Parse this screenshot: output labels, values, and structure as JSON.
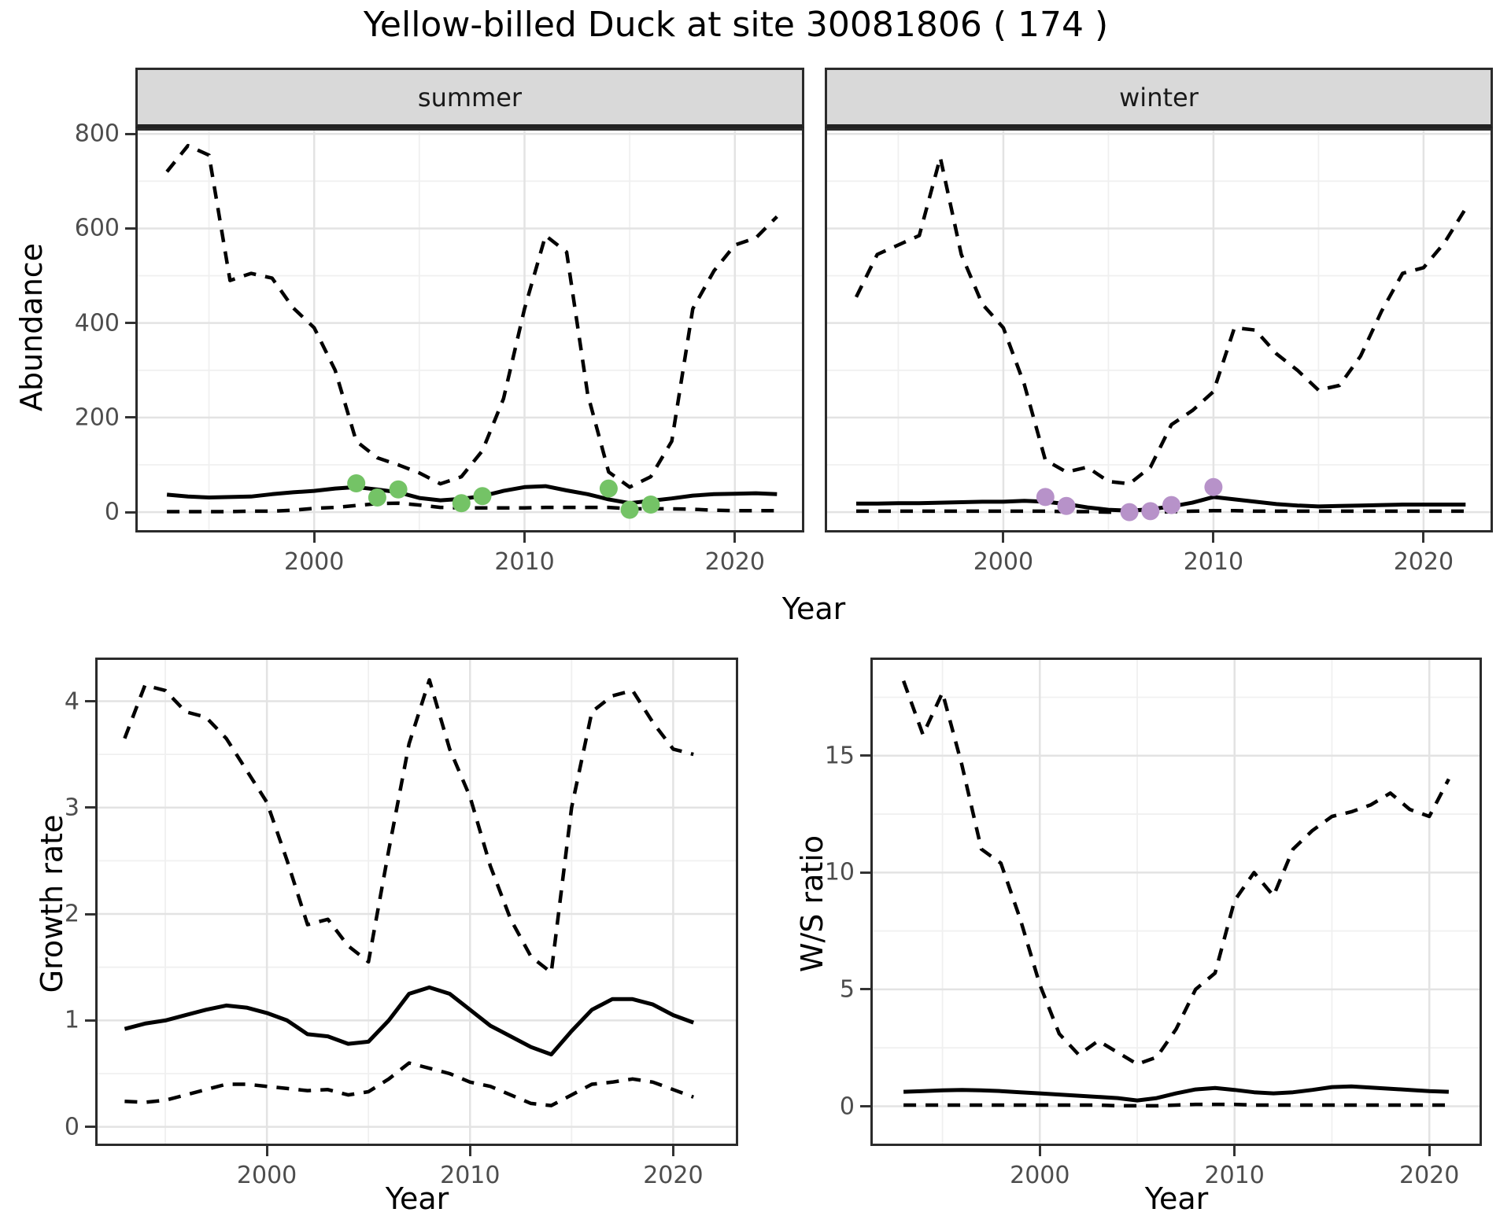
{
  "title": "Yellow-billed Duck at site 30081806 ( 174 )",
  "labels": {
    "year_axis": "Year",
    "abundance_axis": "Abundance",
    "growth_axis": "Growth rate",
    "ws_axis": "W/S ratio",
    "facet_summer": "summer",
    "facet_winter": "winter"
  },
  "colors": {
    "summer_points": "#74C366",
    "winter_points": "#B792C9",
    "line": "#000000",
    "grid_major": "#E3E3E3",
    "grid_minor": "#F0F0F0",
    "panel_border": "#2B2B2B",
    "strip_bg": "#D9D9D9",
    "tick_text": "#4D4D4D"
  },
  "chart_data": [
    {
      "id": "abundance_summer",
      "type": "line",
      "facet": "summer",
      "xlabel": "Year",
      "ylabel": "Abundance",
      "xlim": [
        1991.5,
        2023.3
      ],
      "ylim": [
        -43,
        812
      ],
      "xticks": {
        "values": [
          2000,
          2010,
          2020
        ],
        "labels": [
          "2000",
          "2010",
          "2020"
        ],
        "minor": [
          1995,
          2005,
          2015
        ]
      },
      "yticks": {
        "values": [
          0,
          200,
          400,
          600,
          800
        ],
        "labels": [
          "0",
          "200",
          "400",
          "600",
          "800"
        ],
        "minor": [
          100,
          300,
          500,
          700
        ]
      },
      "years": [
        1993,
        1994,
        1995,
        1996,
        1997,
        1998,
        1999,
        2000,
        2001,
        2002,
        2003,
        2004,
        2005,
        2006,
        2007,
        2008,
        2009,
        2010,
        2011,
        2012,
        2013,
        2014,
        2015,
        2016,
        2017,
        2018,
        2019,
        2020,
        2021,
        2022
      ],
      "series": [
        {
          "name": "upper_95ci",
          "style": "dashed",
          "values": [
            720,
            775,
            755,
            490,
            505,
            495,
            432,
            390,
            300,
            150,
            115,
            100,
            83,
            60,
            75,
            130,
            240,
            430,
            585,
            550,
            250,
            85,
            53,
            75,
            150,
            430,
            510,
            565,
            580,
            625
          ]
        },
        {
          "name": "mean",
          "style": "solid",
          "values": [
            37,
            33,
            31,
            32,
            33,
            38,
            42,
            45,
            50,
            53,
            48,
            42,
            30,
            25,
            28,
            34,
            45,
            53,
            55,
            46,
            38,
            27,
            19,
            24,
            29,
            35,
            38,
            39,
            40,
            38
          ]
        },
        {
          "name": "lower_95ci",
          "style": "dashed",
          "values": [
            1,
            1,
            1,
            1,
            2,
            2,
            4,
            8,
            10,
            14,
            18,
            19,
            15,
            10,
            9,
            9,
            9,
            9,
            10,
            10,
            10,
            10,
            7,
            7,
            7,
            6,
            4,
            3,
            3,
            3
          ]
        }
      ],
      "observations": {
        "color_key": "summer_points",
        "data": [
          [
            2002,
            61
          ],
          [
            2003,
            31
          ],
          [
            2004,
            48
          ],
          [
            2007,
            19
          ],
          [
            2008,
            34
          ],
          [
            2014,
            50
          ],
          [
            2015,
            5
          ],
          [
            2016,
            16
          ]
        ]
      }
    },
    {
      "id": "abundance_winter",
      "type": "line",
      "facet": "winter",
      "xlabel": "Year",
      "ylabel": "Abundance",
      "xlim": [
        1991.5,
        2023.3
      ],
      "ylim": [
        -43,
        812
      ],
      "xticks": {
        "values": [
          2000,
          2010,
          2020
        ],
        "labels": [
          "2000",
          "2010",
          "2020"
        ],
        "minor": [
          1995,
          2005,
          2015
        ]
      },
      "yticks": {
        "values": [
          0,
          200,
          400,
          600,
          800
        ],
        "labels": [
          "0",
          "200",
          "400",
          "600",
          "800"
        ],
        "minor": [
          100,
          300,
          500,
          700
        ]
      },
      "years": [
        1993,
        1994,
        1995,
        1996,
        1997,
        1998,
        1999,
        2000,
        2001,
        2002,
        2003,
        2004,
        2005,
        2006,
        2007,
        2008,
        2009,
        2010,
        2011,
        2012,
        2013,
        2014,
        2015,
        2016,
        2017,
        2018,
        2019,
        2020,
        2021,
        2022
      ],
      "series": [
        {
          "name": "upper_95ci",
          "style": "dashed",
          "values": [
            455,
            545,
            565,
            585,
            750,
            545,
            440,
            390,
            270,
            110,
            85,
            95,
            65,
            60,
            95,
            185,
            215,
            255,
            390,
            385,
            335,
            300,
            258,
            268,
            330,
            425,
            505,
            517,
            570,
            642
          ]
        },
        {
          "name": "mean",
          "style": "solid",
          "values": [
            18,
            18,
            19,
            19,
            20,
            21,
            22,
            22,
            24,
            22,
            17,
            10,
            5,
            3,
            6,
            12,
            20,
            32,
            27,
            22,
            17,
            14,
            12,
            13,
            14,
            15,
            16,
            16,
            16,
            16
          ]
        },
        {
          "name": "lower_95ci",
          "style": "dashed",
          "values": [
            2,
            2,
            2,
            2,
            2,
            2,
            2,
            2,
            2,
            2,
            1,
            1,
            0,
            0,
            0,
            1,
            2,
            3,
            3,
            2,
            2,
            2,
            2,
            2,
            2,
            2,
            2,
            2,
            2,
            2
          ]
        }
      ],
      "observations": {
        "color_key": "winter_points",
        "data": [
          [
            2002,
            32
          ],
          [
            2003,
            13
          ],
          [
            2006,
            0
          ],
          [
            2007,
            2
          ],
          [
            2008,
            15
          ],
          [
            2010,
            53
          ]
        ]
      }
    },
    {
      "id": "growth_rate",
      "type": "line",
      "facet": null,
      "xlabel": "Year",
      "ylabel": "Growth rate",
      "xlim": [
        1991.55,
        2023.2
      ],
      "ylim": [
        -0.18,
        4.41
      ],
      "xticks": {
        "values": [
          2000,
          2010,
          2020
        ],
        "labels": [
          "2000",
          "2010",
          "2020"
        ],
        "minor": [
          1995,
          2005,
          2015
        ]
      },
      "yticks": {
        "values": [
          0,
          1,
          2,
          3,
          4
        ],
        "labels": [
          "0",
          "1",
          "2",
          "3",
          "4"
        ],
        "minor": [
          0.5,
          1.5,
          2.5,
          3.5
        ]
      },
      "years": [
        1993,
        1994,
        1995,
        1996,
        1997,
        1998,
        1999,
        2000,
        2001,
        2002,
        2003,
        2004,
        2005,
        2006,
        2007,
        2008,
        2009,
        2010,
        2011,
        2012,
        2013,
        2014,
        2015,
        2016,
        2017,
        2018,
        2019,
        2020,
        2021
      ],
      "series": [
        {
          "name": "upper_95ci",
          "style": "dashed",
          "values": [
            3.65,
            4.15,
            4.1,
            3.9,
            3.85,
            3.65,
            3.35,
            3.05,
            2.5,
            1.9,
            1.95,
            1.7,
            1.55,
            2.6,
            3.6,
            4.2,
            3.55,
            3.1,
            2.45,
            1.95,
            1.6,
            1.45,
            3.0,
            3.9,
            4.05,
            4.1,
            3.8,
            3.55,
            3.5
          ]
        },
        {
          "name": "mean",
          "style": "solid",
          "values": [
            0.92,
            0.97,
            1.0,
            1.05,
            1.1,
            1.14,
            1.12,
            1.07,
            1.0,
            0.87,
            0.85,
            0.78,
            0.8,
            1.0,
            1.25,
            1.31,
            1.25,
            1.1,
            0.95,
            0.85,
            0.75,
            0.68,
            0.9,
            1.1,
            1.2,
            1.2,
            1.15,
            1.05,
            0.98
          ]
        },
        {
          "name": "lower_95ci",
          "style": "dashed",
          "values": [
            0.24,
            0.23,
            0.25,
            0.3,
            0.35,
            0.4,
            0.4,
            0.38,
            0.36,
            0.34,
            0.35,
            0.3,
            0.33,
            0.45,
            0.6,
            0.55,
            0.5,
            0.42,
            0.38,
            0.3,
            0.22,
            0.2,
            0.3,
            0.4,
            0.42,
            0.45,
            0.42,
            0.35,
            0.28
          ]
        }
      ],
      "observations": null
    },
    {
      "id": "ws_ratio",
      "type": "line",
      "facet": null,
      "xlabel": "Year",
      "ylabel": "W/S ratio",
      "xlim": [
        1991.3,
        2022.7
      ],
      "ylim": [
        -1.7,
        19.2
      ],
      "xticks": {
        "values": [
          2000,
          2010,
          2020
        ],
        "labels": [
          "2000",
          "2010",
          "2020"
        ],
        "minor": [
          1995,
          2005,
          2015
        ]
      },
      "yticks": {
        "values": [
          0,
          5,
          10,
          15
        ],
        "labels": [
          "0",
          "5",
          "10",
          "15"
        ],
        "minor": [
          2.5,
          7.5,
          12.5,
          17.5
        ]
      },
      "years": [
        1993,
        1994,
        1995,
        1996,
        1997,
        1998,
        1999,
        2000,
        2001,
        2002,
        2003,
        2004,
        2005,
        2006,
        2007,
        2008,
        2009,
        2010,
        2011,
        2012,
        2013,
        2014,
        2015,
        2016,
        2017,
        2018,
        2019,
        2020,
        2021
      ],
      "series": [
        {
          "name": "upper_95ci",
          "style": "dashed",
          "values": [
            18.2,
            15.9,
            17.7,
            14.6,
            11.0,
            10.4,
            8.0,
            5.2,
            3.1,
            2.2,
            2.8,
            2.3,
            1.8,
            2.1,
            3.3,
            5.0,
            5.7,
            8.8,
            10.0,
            9.0,
            11.0,
            11.8,
            12.4,
            12.6,
            12.9,
            13.4,
            12.7,
            12.4,
            14.0
          ]
        },
        {
          "name": "mean",
          "style": "solid",
          "values": [
            0.62,
            0.65,
            0.68,
            0.7,
            0.68,
            0.65,
            0.6,
            0.55,
            0.5,
            0.45,
            0.4,
            0.35,
            0.25,
            0.35,
            0.55,
            0.72,
            0.78,
            0.7,
            0.6,
            0.55,
            0.6,
            0.7,
            0.82,
            0.85,
            0.8,
            0.75,
            0.7,
            0.65,
            0.62
          ]
        },
        {
          "name": "lower_95ci",
          "style": "dashed",
          "values": [
            0.05,
            0.05,
            0.05,
            0.05,
            0.05,
            0.05,
            0.05,
            0.05,
            0.05,
            0.05,
            0.05,
            0.02,
            0.02,
            0.02,
            0.05,
            0.08,
            0.08,
            0.08,
            0.05,
            0.05,
            0.05,
            0.05,
            0.05,
            0.05,
            0.05,
            0.05,
            0.05,
            0.05,
            0.05
          ]
        }
      ],
      "observations": null
    }
  ]
}
